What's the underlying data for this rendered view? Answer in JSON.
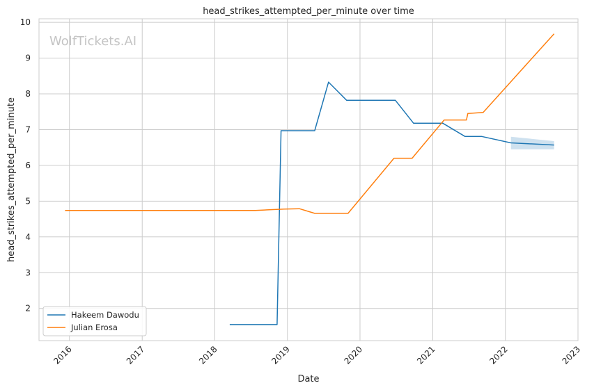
{
  "chart_data": {
    "type": "line",
    "title": "head_strikes_attempted_per_minute over time",
    "xlabel": "Date",
    "ylabel": "head_strikes_attempted_per_minute",
    "watermark": "WolfTickets.AI",
    "x_type": "date",
    "xlim": [
      "2015-08-01",
      "2023-01-01"
    ],
    "ylim": [
      1.1,
      10.1
    ],
    "x_ticks": [
      "2016-01-01",
      "2017-01-01",
      "2018-01-01",
      "2019-01-01",
      "2020-01-01",
      "2021-01-01",
      "2022-01-01",
      "2023-01-01"
    ],
    "x_tick_labels": [
      "2016",
      "2017",
      "2018",
      "2019",
      "2020",
      "2021",
      "2022",
      "2023"
    ],
    "y_ticks": [
      2,
      3,
      4,
      5,
      6,
      7,
      8,
      9,
      10
    ],
    "y_tick_labels": [
      "2",
      "3",
      "4",
      "5",
      "6",
      "7",
      "8",
      "9",
      "10"
    ],
    "grid": true,
    "legend": "lower-left",
    "series": [
      {
        "name": "Hakeem Dawodu",
        "color": "#1f77b4",
        "points": [
          [
            "2018-03-17",
            1.55
          ],
          [
            "2018-11-10",
            1.55
          ],
          [
            "2018-11-30",
            6.97
          ],
          [
            "2019-05-18",
            6.97
          ],
          [
            "2019-07-27",
            8.33
          ],
          [
            "2019-10-26",
            7.82
          ],
          [
            "2020-06-27",
            7.82
          ],
          [
            "2020-09-26",
            7.18
          ],
          [
            "2021-02-20",
            7.18
          ],
          [
            "2021-06-12",
            6.81
          ],
          [
            "2021-09-04",
            6.81
          ],
          [
            "2022-01-29",
            6.63
          ],
          [
            "2022-09-03",
            6.57
          ]
        ],
        "band": {
          "x": [
            "2022-01-29",
            "2022-09-03"
          ],
          "upper": [
            6.8,
            6.68
          ],
          "lower": [
            6.45,
            6.45
          ]
        }
      },
      {
        "name": "Julian Erosa",
        "color": "#ff7f0e",
        "points": [
          [
            "2015-12-10",
            4.74
          ],
          [
            "2018-07-22",
            4.74
          ],
          [
            "2018-12-15",
            4.78
          ],
          [
            "2019-03-02",
            4.79
          ],
          [
            "2019-05-18",
            4.66
          ],
          [
            "2019-11-02",
            4.66
          ],
          [
            "2020-06-20",
            6.2
          ],
          [
            "2020-09-19",
            6.2
          ],
          [
            "2021-02-27",
            7.27
          ],
          [
            "2021-06-19",
            7.27
          ],
          [
            "2021-06-26",
            7.45
          ],
          [
            "2021-09-11",
            7.48
          ],
          [
            "2022-09-03",
            9.68
          ]
        ]
      }
    ]
  }
}
